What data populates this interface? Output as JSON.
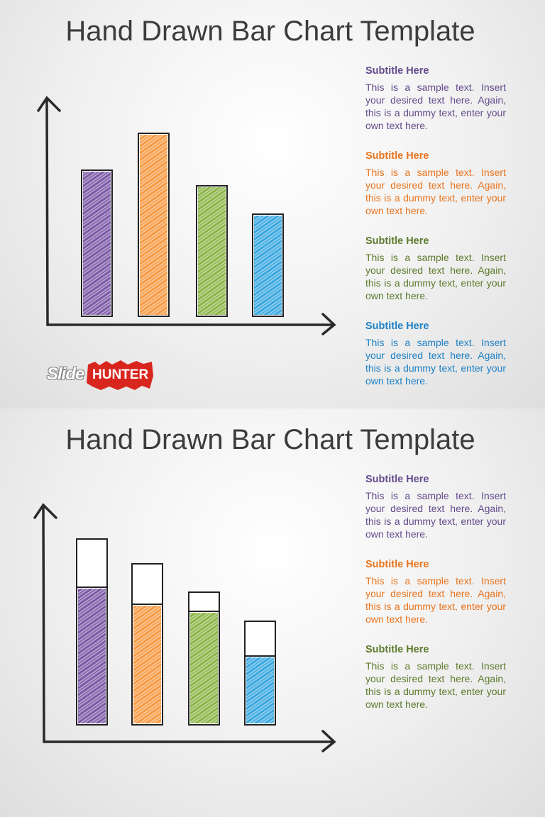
{
  "slides": [
    {
      "title": "Hand Drawn Bar Chart Template",
      "items": [
        {
          "subtitle": "Subtitle Here",
          "text": "This is a sample text. Insert your desired text here. Again, this is a dummy text, enter your own text here."
        },
        {
          "subtitle": "Subtitle Here",
          "text": "This is a sample text. Insert your desired text here. Again, this is a dummy text, enter your own text here."
        },
        {
          "subtitle": "Subtitle Here",
          "text": "This is a sample text. Insert your desired text here. Again, this is a dummy text, enter your own text here."
        },
        {
          "subtitle": "Subtitle Here",
          "text": "This is a sample text. Insert your desired text here. Again, this is a dummy text, enter your own text here."
        }
      ],
      "logo": {
        "left": "Slide",
        "right": "HUNTER"
      }
    },
    {
      "title": "Hand Drawn Bar Chart Template",
      "items": [
        {
          "subtitle": "Subtitle Here",
          "text": "This is a sample text. Insert your desired text here. Again, this is a dummy text, enter your own text here."
        },
        {
          "subtitle": "Subtitle Here",
          "text": "This is a sample text. Insert your desired text here. Again, this is a dummy text, enter your own text here."
        },
        {
          "subtitle": "Subtitle Here",
          "text": "This is a sample text. Insert your desired text here. Again, this is a dummy text, enter your own text here."
        }
      ]
    }
  ]
}
